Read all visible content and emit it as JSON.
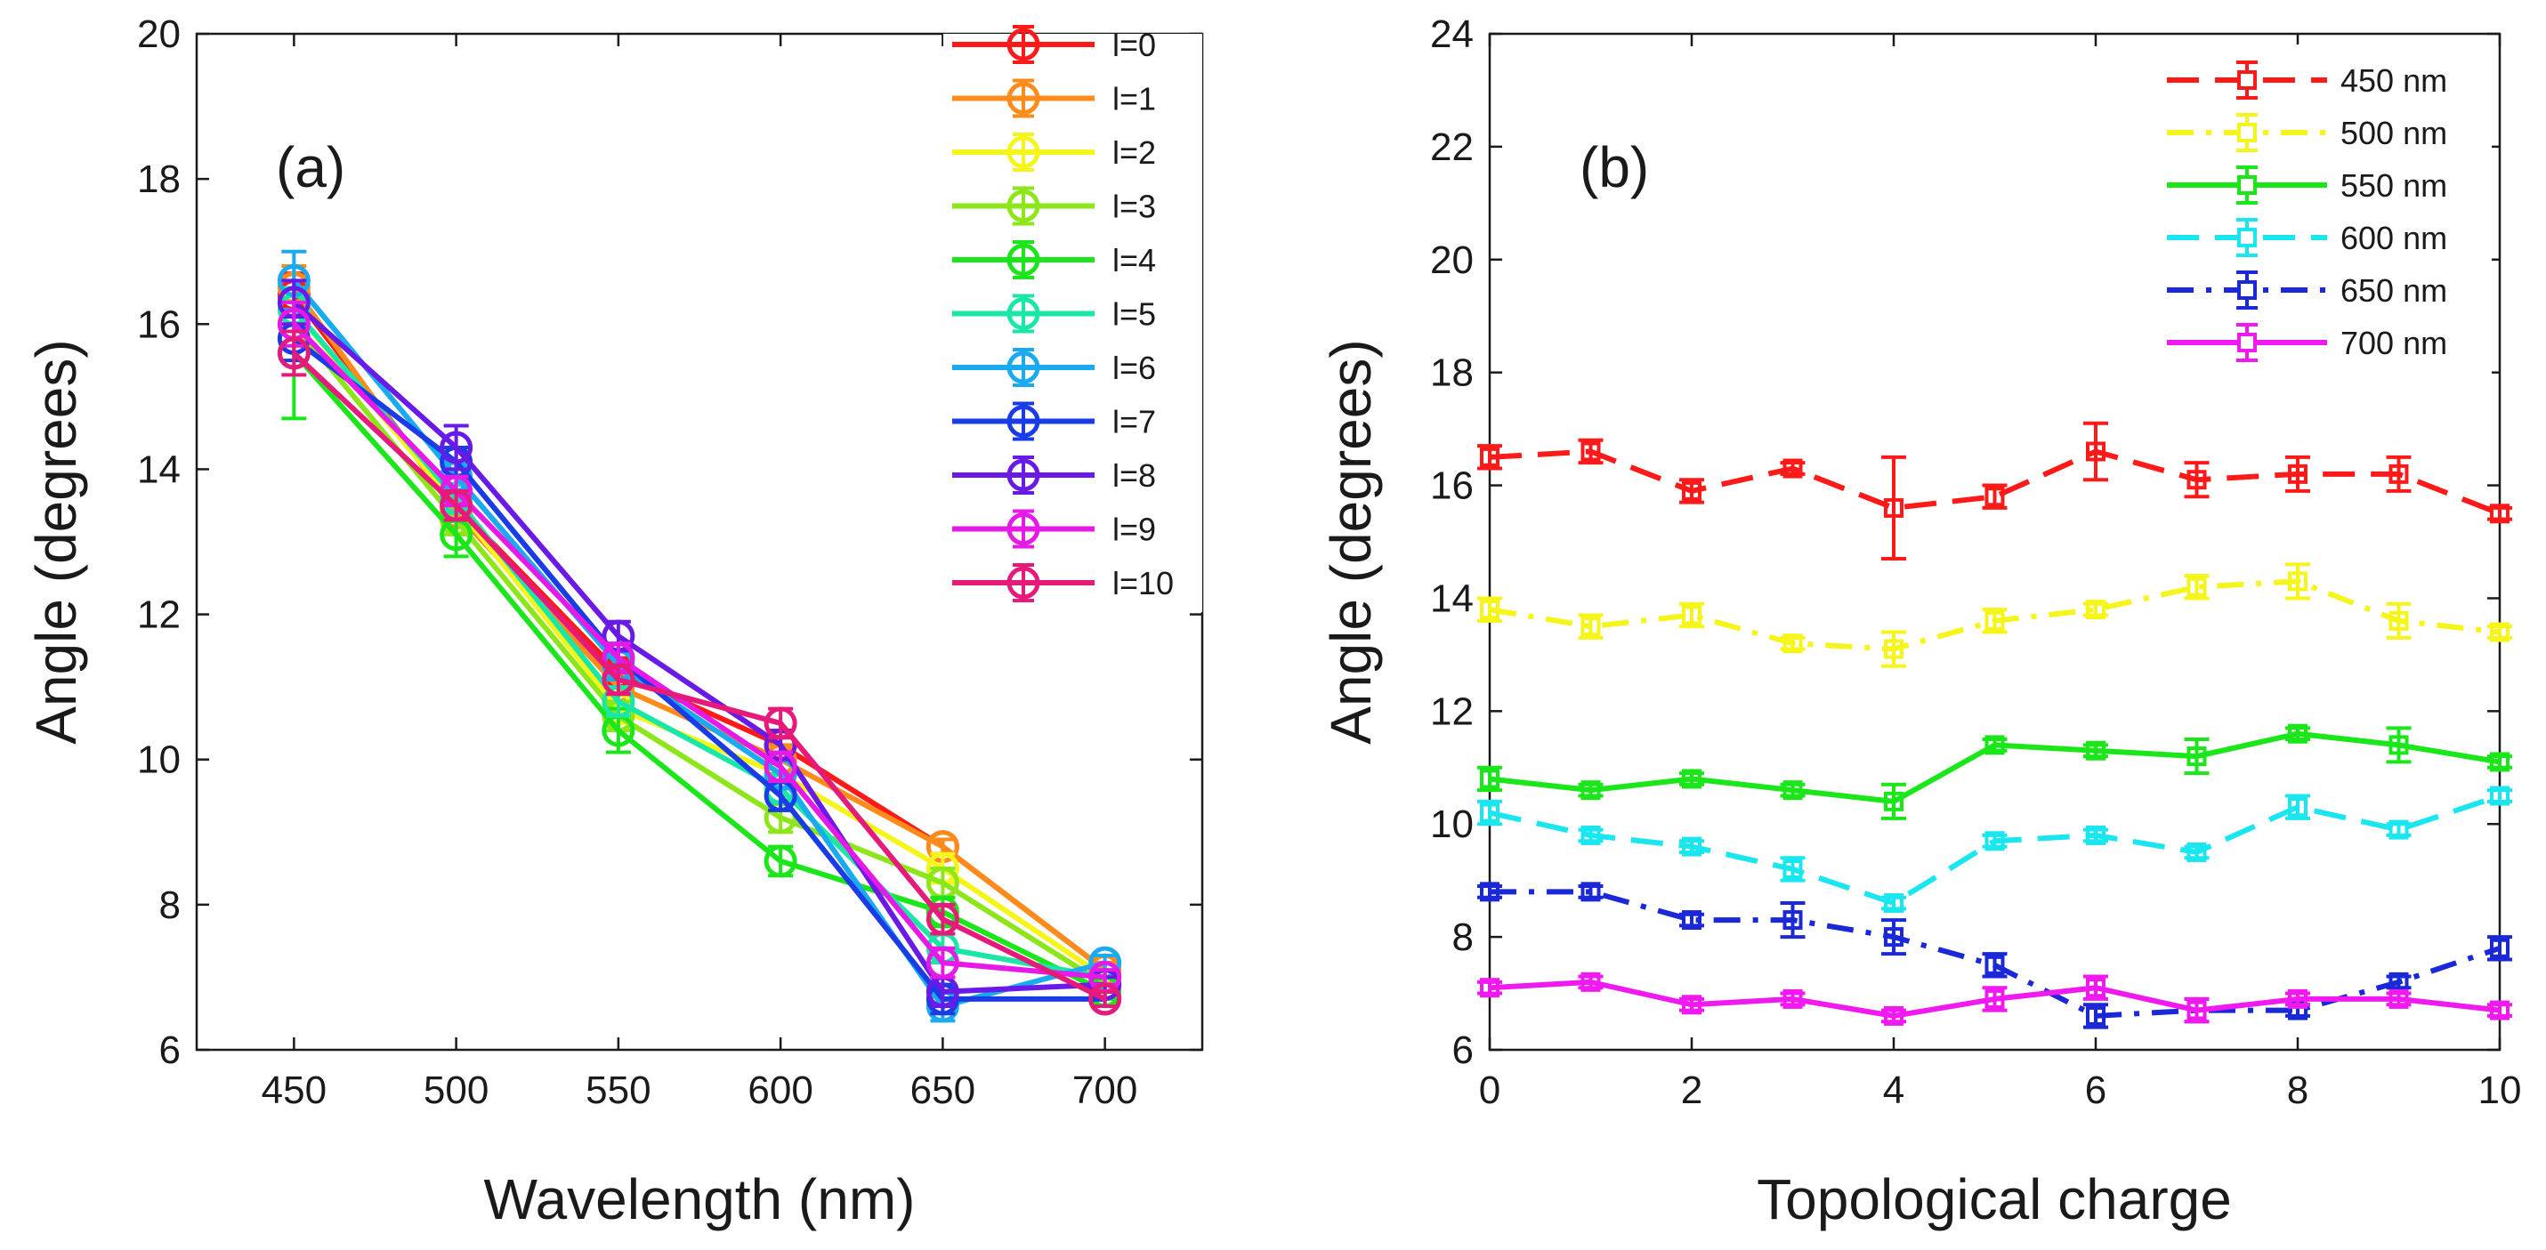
{
  "chart_data": [
    {
      "type": "line",
      "panel_label": "(a)",
      "xlabel": "Wavelength (nm)",
      "ylabel": "Angle (degrees)",
      "xlim": [
        420,
        730
      ],
      "ylim": [
        6,
        20
      ],
      "xticks": [
        450,
        500,
        550,
        600,
        650,
        700
      ],
      "yticks": [
        6,
        8,
        10,
        12,
        14,
        16,
        18,
        20
      ],
      "grid": false,
      "legend_position": "top-right",
      "marker": "circle",
      "x": [
        450,
        500,
        550,
        600,
        650,
        700
      ],
      "series": [
        {
          "name": "l=0",
          "color": "#ff1a1a",
          "values": [
            16.4,
            13.5,
            11.2,
            10.2,
            8.8,
            7.1
          ],
          "errors": [
            0.3,
            0.2,
            0.2,
            0.2,
            0.1,
            0.1
          ]
        },
        {
          "name": "l=1",
          "color": "#ff8c1a",
          "values": [
            16.5,
            13.4,
            11.0,
            10.0,
            8.8,
            7.1
          ],
          "errors": [
            0.3,
            0.2,
            0.2,
            0.2,
            0.1,
            0.1
          ]
        },
        {
          "name": "l=2",
          "color": "#f5f51a",
          "values": [
            16.2,
            13.5,
            10.7,
            9.8,
            8.5,
            7.0
          ],
          "errors": [
            0.3,
            0.2,
            0.2,
            0.2,
            0.2,
            0.1
          ]
        },
        {
          "name": "l=3",
          "color": "#8ce61a",
          "values": [
            16.0,
            13.3,
            10.6,
            9.2,
            8.3,
            6.9
          ],
          "errors": [
            0.3,
            0.2,
            0.2,
            0.2,
            0.2,
            0.1
          ]
        },
        {
          "name": "l=4",
          "color": "#1ae61a",
          "values": [
            15.6,
            13.1,
            10.4,
            8.6,
            7.9,
            6.8
          ],
          "errors": [
            0.9,
            0.3,
            0.3,
            0.2,
            0.2,
            0.1
          ]
        },
        {
          "name": "l=5",
          "color": "#1ae6a8",
          "values": [
            16.2,
            13.6,
            10.8,
            9.6,
            7.4,
            7.0
          ],
          "errors": [
            0.3,
            0.2,
            0.2,
            0.2,
            0.2,
            0.1
          ]
        },
        {
          "name": "l=6",
          "color": "#1aaaf0",
          "values": [
            16.6,
            13.9,
            11.3,
            9.8,
            6.6,
            7.2
          ],
          "errors": [
            0.4,
            0.2,
            0.2,
            0.2,
            0.2,
            0.1
          ]
        },
        {
          "name": "l=7",
          "color": "#1a3ce6",
          "values": [
            15.8,
            14.1,
            11.4,
            9.5,
            6.7,
            6.7
          ],
          "errors": [
            0.3,
            0.2,
            0.2,
            0.2,
            0.2,
            0.1
          ]
        },
        {
          "name": "l=8",
          "color": "#6a1ae6",
          "values": [
            16.3,
            14.3,
            11.7,
            10.2,
            6.8,
            6.9
          ],
          "errors": [
            0.3,
            0.3,
            0.2,
            0.2,
            0.2,
            0.1
          ]
        },
        {
          "name": "l=9",
          "color": "#e61ae6",
          "values": [
            16.0,
            13.7,
            11.4,
            9.9,
            7.2,
            7.0
          ],
          "errors": [
            0.3,
            0.2,
            0.2,
            0.2,
            0.2,
            0.1
          ]
        },
        {
          "name": "l=10",
          "color": "#e61a7a",
          "values": [
            15.6,
            13.5,
            11.1,
            10.5,
            7.8,
            6.7
          ],
          "errors": [
            0.3,
            0.2,
            0.2,
            0.2,
            0.2,
            0.1
          ]
        }
      ]
    },
    {
      "type": "line",
      "panel_label": "(b)",
      "xlabel": "Topological charge",
      "ylabel": "Angle (degrees)",
      "xlim": [
        0,
        10
      ],
      "ylim": [
        6,
        24
      ],
      "xticks": [
        0,
        2,
        4,
        6,
        8,
        10
      ],
      "yticks": [
        6,
        8,
        10,
        12,
        14,
        16,
        18,
        20,
        22,
        24
      ],
      "grid": false,
      "legend_position": "top-right",
      "marker": "square",
      "x": [
        0,
        1,
        2,
        3,
        4,
        5,
        6,
        7,
        8,
        9,
        10
      ],
      "series": [
        {
          "name": "450 nm",
          "color": "#ff1a1a",
          "dash": "long-dash",
          "values": [
            16.5,
            16.6,
            15.9,
            16.3,
            15.6,
            15.8,
            16.6,
            16.1,
            16.2,
            16.2,
            15.5
          ],
          "errors": [
            0.2,
            0.2,
            0.2,
            0.1,
            0.9,
            0.2,
            0.5,
            0.3,
            0.3,
            0.3,
            0.1
          ]
        },
        {
          "name": "500 nm",
          "color": "#f5f51a",
          "dash": "dash-dot",
          "values": [
            13.8,
            13.5,
            13.7,
            13.2,
            13.1,
            13.6,
            13.8,
            14.2,
            14.3,
            13.6,
            13.4
          ],
          "errors": [
            0.2,
            0.2,
            0.2,
            0.1,
            0.3,
            0.2,
            0.1,
            0.2,
            0.3,
            0.3,
            0.1
          ]
        },
        {
          "name": "550 nm",
          "color": "#1ae61a",
          "dash": "solid",
          "values": [
            10.8,
            10.6,
            10.8,
            10.6,
            10.4,
            11.4,
            11.3,
            11.2,
            11.6,
            11.4,
            11.1
          ],
          "errors": [
            0.2,
            0.1,
            0.1,
            0.1,
            0.3,
            0.1,
            0.1,
            0.3,
            0.1,
            0.3,
            0.1
          ]
        },
        {
          "name": "600 nm",
          "color": "#1ae6f0",
          "dash": "long-dash",
          "values": [
            10.2,
            9.8,
            9.6,
            9.2,
            8.6,
            9.7,
            9.8,
            9.5,
            10.3,
            9.9,
            10.5
          ],
          "errors": [
            0.2,
            0.1,
            0.1,
            0.2,
            0.1,
            0.1,
            0.1,
            0.1,
            0.2,
            0.1,
            0.1
          ]
        },
        {
          "name": "650 nm",
          "color": "#1a28d8",
          "dash": "dash-dot",
          "values": [
            8.8,
            8.8,
            8.3,
            8.3,
            8.0,
            7.5,
            6.6,
            6.7,
            6.7,
            7.2,
            7.8
          ],
          "errors": [
            0.1,
            0.1,
            0.1,
            0.3,
            0.3,
            0.2,
            0.2,
            0.2,
            0.1,
            0.1,
            0.2
          ]
        },
        {
          "name": "700 nm",
          "color": "#f01af0",
          "dash": "solid",
          "values": [
            7.1,
            7.2,
            6.8,
            6.9,
            6.6,
            6.9,
            7.1,
            6.7,
            6.9,
            6.9,
            6.7
          ],
          "errors": [
            0.1,
            0.1,
            0.1,
            0.1,
            0.1,
            0.2,
            0.2,
            0.2,
            0.1,
            0.1,
            0.1
          ]
        }
      ]
    }
  ]
}
